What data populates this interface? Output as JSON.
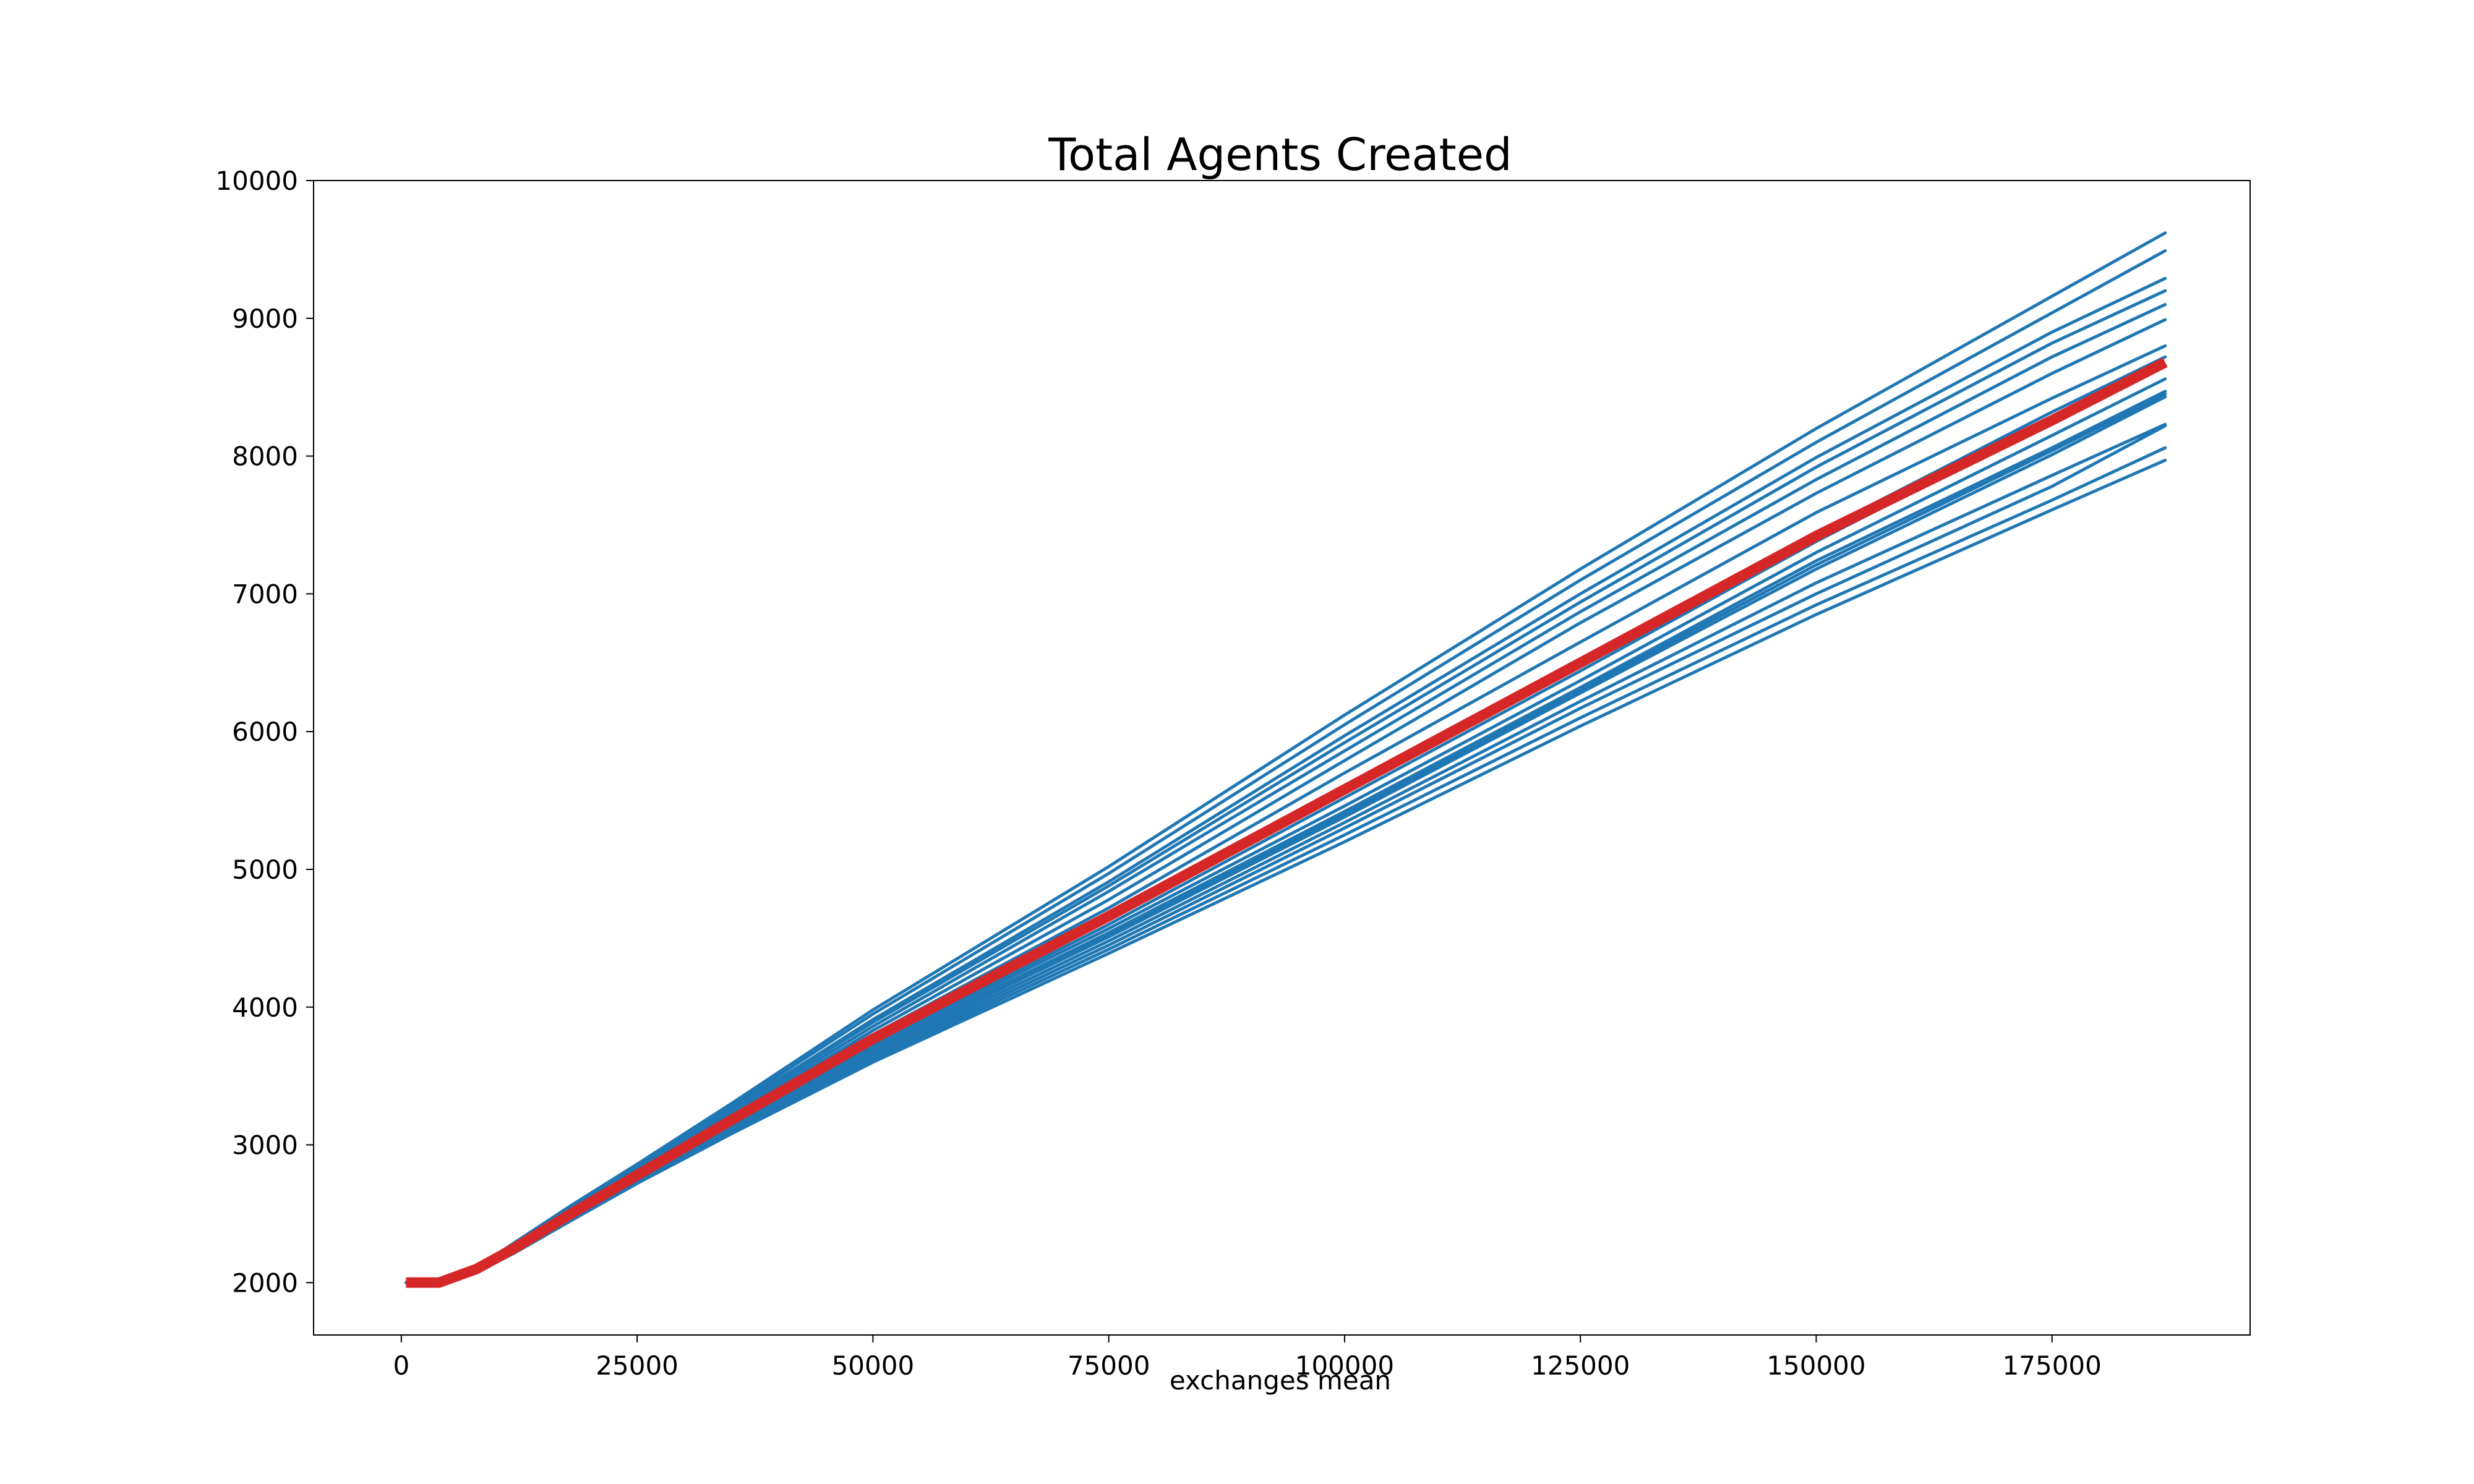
{
  "chart_data": {
    "type": "line",
    "title": "Total Agents Created",
    "xlabel": "exchanges mean",
    "ylabel": "",
    "xlim": [
      -9300,
      196000
    ],
    "ylim": [
      1620,
      10000
    ],
    "xticks": [
      0,
      25000,
      50000,
      75000,
      100000,
      125000,
      150000,
      175000
    ],
    "yticks": [
      2000,
      3000,
      4000,
      5000,
      6000,
      7000,
      8000,
      9000,
      10000
    ],
    "grid": false,
    "legend": "none",
    "mean_color": "#d62728",
    "run_color": "#1f77b4",
    "x": [
      500,
      4000,
      8000,
      12000,
      18000,
      25000,
      35000,
      50000,
      75000,
      100000,
      125000,
      150000,
      175000,
      187000
    ],
    "mean_series": {
      "values": [
        2000,
        2000,
        2100,
        2250,
        2500,
        2780,
        3180,
        3770,
        4660,
        5580,
        6500,
        7420,
        8260,
        8680
      ]
    },
    "run_series": [
      {
        "values": [
          2000,
          2000,
          2110,
          2290,
          2560,
          2860,
          3300,
          3980,
          5020,
          6120,
          7180,
          8200,
          9160,
          9620
        ]
      },
      {
        "values": [
          2000,
          2000,
          2105,
          2280,
          2550,
          2850,
          3280,
          3950,
          4970,
          6050,
          7100,
          8100,
          9040,
          9490
        ]
      },
      {
        "values": [
          2000,
          2000,
          2100,
          2270,
          2540,
          2830,
          3260,
          3910,
          4910,
          5970,
          7000,
          7990,
          8900,
          9290
        ]
      },
      {
        "values": [
          2000,
          2000,
          2100,
          2265,
          2530,
          2820,
          3250,
          3890,
          4880,
          5920,
          6940,
          7920,
          8820,
          9200
        ]
      },
      {
        "values": [
          2000,
          2000,
          2100,
          2260,
          2520,
          2810,
          3230,
          3860,
          4840,
          5860,
          6870,
          7830,
          8720,
          9100
        ]
      },
      {
        "values": [
          2000,
          2000,
          2095,
          2255,
          2515,
          2800,
          3210,
          3830,
          4780,
          5790,
          6790,
          7730,
          8600,
          8990
        ]
      },
      {
        "values": [
          2000,
          2000,
          2095,
          2250,
          2505,
          2790,
          3200,
          3800,
          4720,
          5700,
          6650,
          7590,
          8420,
          8800
        ]
      },
      {
        "values": [
          2000,
          2000,
          2090,
          2245,
          2495,
          2780,
          3180,
          3760,
          4640,
          5580,
          6510,
          7440,
          8320,
          8720
        ]
      },
      {
        "values": [
          2000,
          2000,
          2090,
          2240,
          2490,
          2770,
          3160,
          3730,
          4600,
          5520,
          6440,
          7380,
          8260,
          8660
        ]
      },
      {
        "values": [
          2000,
          2000,
          2090,
          2240,
          2485,
          2765,
          3150,
          3720,
          4570,
          5460,
          6370,
          7300,
          8150,
          8560
        ]
      },
      {
        "values": [
          2000,
          2000,
          2085,
          2235,
          2480,
          2760,
          3140,
          3700,
          4540,
          5420,
          6320,
          7240,
          8060,
          8470
        ]
      },
      {
        "values": [
          2000,
          2000,
          2085,
          2230,
          2475,
          2750,
          3130,
          3690,
          4520,
          5400,
          6300,
          7210,
          8040,
          8450
        ]
      },
      {
        "values": [
          2000,
          2000,
          2085,
          2230,
          2470,
          2745,
          3120,
          3680,
          4510,
          5380,
          6280,
          7180,
          8010,
          8430
        ]
      },
      {
        "values": [
          2000,
          2000,
          2080,
          2225,
          2465,
          2740,
          3110,
          3660,
          4480,
          5340,
          6220,
          7080,
          7860,
          8230
        ]
      },
      {
        "values": [
          2000,
          2000,
          2080,
          2220,
          2460,
          2735,
          3100,
          3640,
          4450,
          5300,
          6170,
          7000,
          7780,
          8220
        ]
      },
      {
        "values": [
          2000,
          2000,
          2080,
          2220,
          2455,
          2725,
          3090,
          3620,
          4420,
          5250,
          6100,
          6920,
          7680,
          8060
        ]
      },
      {
        "values": [
          2000,
          2000,
          2075,
          2215,
          2450,
          2720,
          3080,
          3600,
          4390,
          5200,
          6040,
          6850,
          7610,
          7970
        ]
      }
    ]
  }
}
